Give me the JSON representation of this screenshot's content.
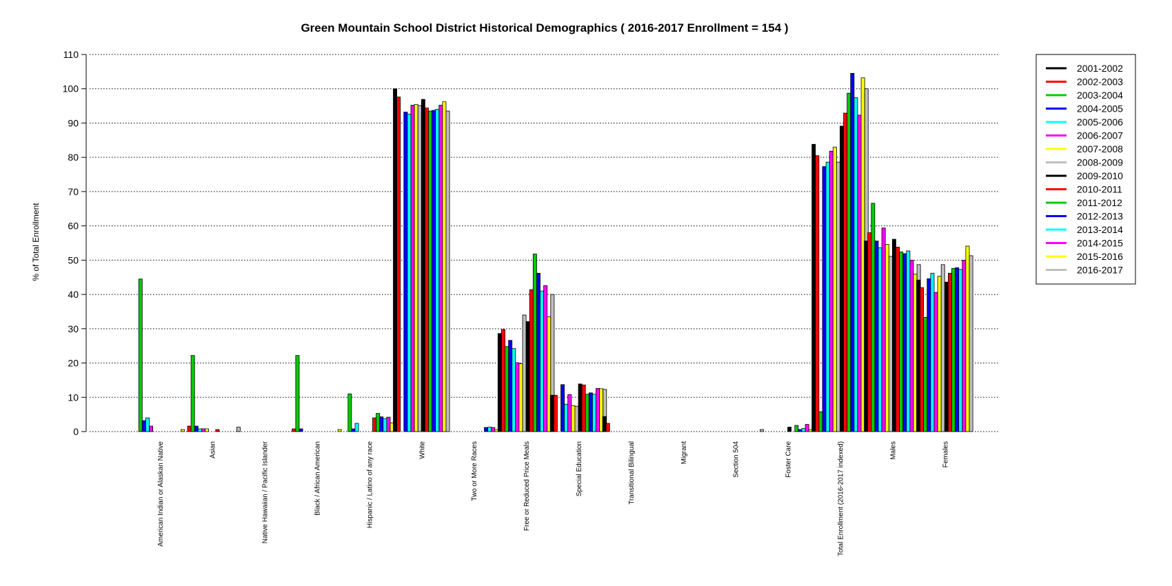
{
  "chart_data": {
    "type": "bar",
    "title": "Green Mountain School District Historical Demographics  ( 2016-2017 Enrollment =  154 )",
    "ylabel": "% of Total Enrollment",
    "xlabel": "",
    "ylim": [
      0,
      110
    ],
    "yticks": [
      0,
      10,
      20,
      30,
      40,
      50,
      60,
      70,
      80,
      90,
      100,
      110
    ],
    "grid": "horizontal dotted",
    "legend_position": "right",
    "categories": [
      "American Indian or Alaskan Native",
      "Asian",
      "Native Hawaiian / Pacific Islander",
      "Black / African American",
      "Hispanic / Latino of any race",
      "White",
      "Two or More Races",
      "Free or Reduced Price Meals",
      "Special Education",
      "Transitional Bilingual",
      "Migrant",
      "Section 504",
      "Foster Care",
      "Total Enrollment (2016-2017 indexed)",
      "Males",
      "Females"
    ],
    "series": [
      {
        "name": "2001-2002",
        "color": "#000000",
        "values": [
          0,
          0,
          0,
          0,
          0,
          100,
          0,
          28.6,
          10.6,
          4.4,
          0,
          0,
          0,
          83.8,
          55.6,
          44.2
        ]
      },
      {
        "name": "2002-2003",
        "color": "#ff0000",
        "values": [
          0,
          1.6,
          0,
          0.8,
          0,
          97.6,
          0,
          29.8,
          10.6,
          2.4,
          0,
          0,
          0,
          80.5,
          58.0,
          42.0
        ]
      },
      {
        "name": "2003-2004",
        "color": "#00cc00",
        "values": [
          44.5,
          22.2,
          0,
          22.2,
          11.0,
          0,
          0,
          24.8,
          0,
          0,
          0,
          0,
          0,
          5.8,
          66.6,
          33.3
        ]
      },
      {
        "name": "2004-2005",
        "color": "#0000ff",
        "values": [
          3.2,
          1.6,
          0,
          0.8,
          0.8,
          93.2,
          0,
          26.6,
          13.7,
          0,
          0,
          0,
          0,
          77.3,
          55.6,
          44.6
        ]
      },
      {
        "name": "2005-2006",
        "color": "#00ffff",
        "values": [
          4.0,
          0.8,
          0,
          0,
          2.4,
          92.6,
          0,
          24.2,
          8.0,
          0,
          0,
          0,
          0,
          78.6,
          53.6,
          46.2
        ]
      },
      {
        "name": "2006-2007",
        "color": "#ff00ff",
        "values": [
          1.6,
          0.8,
          0,
          0,
          0,
          95.2,
          0,
          20.1,
          10.8,
          0,
          0,
          0,
          0,
          81.8,
          59.4,
          40.6
        ]
      },
      {
        "name": "2007-2008",
        "color": "#ffff00",
        "values": [
          0,
          0.8,
          0,
          0,
          0,
          95.4,
          0,
          19.8,
          7.6,
          0,
          0,
          0,
          0,
          83.0,
          54.6,
          45.3
        ]
      },
      {
        "name": "2008-2009",
        "color": "#bebebe",
        "values": [
          0,
          0,
          0,
          0,
          0,
          95.1,
          0,
          34.0,
          7.4,
          0,
          0,
          0,
          0,
          78.6,
          51.1,
          48.7
        ]
      },
      {
        "name": "2009-2010",
        "color": "#000000",
        "values": [
          0,
          0,
          0,
          0,
          0,
          96.9,
          0,
          32.1,
          13.9,
          0,
          0,
          0,
          1.3,
          89.1,
          56.1,
          43.6
        ]
      },
      {
        "name": "2010-2011",
        "color": "#ff0000",
        "values": [
          0,
          0.6,
          0,
          0,
          4.0,
          94.4,
          0,
          41.4,
          13.6,
          0,
          0,
          0,
          0,
          92.9,
          53.8,
          46.2
        ]
      },
      {
        "name": "2011-2012",
        "color": "#00cc00",
        "values": [
          0,
          0,
          0,
          0,
          5.3,
          93.5,
          0,
          51.8,
          10.9,
          0,
          0,
          0,
          1.8,
          98.7,
          52.4,
          47.6
        ]
      },
      {
        "name": "2012-2013",
        "color": "#0000ff",
        "values": [
          0,
          0,
          0,
          0,
          4.3,
          93.7,
          1.2,
          46.2,
          11.3,
          0,
          0,
          0,
          0.6,
          104.5,
          51.9,
          47.8
        ]
      },
      {
        "name": "2013-2014",
        "color": "#00ffff",
        "values": [
          0,
          0,
          0,
          0,
          3.8,
          94.0,
          1.3,
          41.0,
          10.9,
          0,
          0,
          0,
          0.9,
          97.4,
          52.7,
          47.3
        ]
      },
      {
        "name": "2014-2015",
        "color": "#ff00ff",
        "values": [
          0,
          0,
          0,
          0,
          4.2,
          95.2,
          1.2,
          42.6,
          12.6,
          0,
          0,
          0,
          2.1,
          92.3,
          50.0,
          50.0
        ]
      },
      {
        "name": "2015-2016",
        "color": "#ffff00",
        "values": [
          0.6,
          0,
          0,
          0.6,
          2.5,
          96.2,
          0.6,
          33.5,
          12.5,
          0,
          0,
          0,
          0.6,
          103.2,
          45.9,
          54.1
        ]
      },
      {
        "name": "2016-2017",
        "color": "#bebebe",
        "values": [
          0,
          1.3,
          0,
          0,
          2.6,
          93.5,
          2.6,
          40.0,
          12.3,
          0,
          0,
          0.6,
          0,
          100.0,
          48.7,
          51.3
        ]
      }
    ]
  }
}
